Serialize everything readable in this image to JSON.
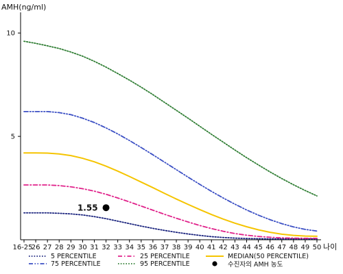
{
  "chart_data": {
    "type": "line",
    "ylabel": "AMH(ng/ml)",
    "xlabel": "나이",
    "categories": [
      "16-25",
      "26",
      "27",
      "28",
      "29",
      "30",
      "31",
      "32",
      "33",
      "34",
      "35",
      "36",
      "37",
      "38",
      "39",
      "40",
      "41",
      "42",
      "43",
      "44",
      "45",
      "46",
      "47",
      "48",
      "49",
      "50"
    ],
    "ylim": [
      0,
      11
    ],
    "yticks": [
      5,
      10
    ],
    "grid": false,
    "legend_position": "bottom",
    "series": [
      {
        "name": "5 PERCENTILE",
        "color": "#1a237e",
        "dash": "dot",
        "values": [
          1.3,
          1.3,
          1.3,
          1.28,
          1.25,
          1.2,
          1.12,
          1.02,
          0.9,
          0.78,
          0.66,
          0.55,
          0.45,
          0.36,
          0.28,
          0.21,
          0.15,
          0.11,
          0.08,
          0.06,
          0.05,
          0.04,
          0.04,
          0.04,
          0.04,
          0.04
        ]
      },
      {
        "name": "25 PERCENTILE",
        "color": "#e0218a",
        "dash": "dashdot",
        "values": [
          2.65,
          2.65,
          2.65,
          2.62,
          2.56,
          2.47,
          2.35,
          2.2,
          2.02,
          1.83,
          1.63,
          1.43,
          1.23,
          1.04,
          0.86,
          0.69,
          0.54,
          0.41,
          0.3,
          0.22,
          0.16,
          0.12,
          0.09,
          0.08,
          0.07,
          0.07
        ]
      },
      {
        "name": "MEDIAN(50 PERCENTILE)",
        "color": "#f5c400",
        "dash": "solid",
        "values": [
          4.2,
          4.2,
          4.19,
          4.15,
          4.07,
          3.94,
          3.77,
          3.56,
          3.32,
          3.06,
          2.79,
          2.52,
          2.24,
          1.97,
          1.71,
          1.46,
          1.22,
          1.0,
          0.8,
          0.63,
          0.48,
          0.36,
          0.27,
          0.21,
          0.18,
          0.17
        ]
      },
      {
        "name": "75 PERCENTILE",
        "color": "#3b4fc4",
        "dash": "dashdotdot",
        "values": [
          6.2,
          6.2,
          6.2,
          6.15,
          6.05,
          5.88,
          5.67,
          5.41,
          5.12,
          4.8,
          4.46,
          4.11,
          3.75,
          3.39,
          3.03,
          2.68,
          2.34,
          2.02,
          1.72,
          1.44,
          1.19,
          0.97,
          0.78,
          0.62,
          0.5,
          0.42
        ]
      },
      {
        "name": "95 PERCENTILE",
        "color": "#2e7d32",
        "dash": "dot",
        "values": [
          9.6,
          9.5,
          9.38,
          9.25,
          9.08,
          8.88,
          8.63,
          8.35,
          8.04,
          7.72,
          7.38,
          7.02,
          6.64,
          6.26,
          5.88,
          5.49,
          5.1,
          4.72,
          4.34,
          3.97,
          3.62,
          3.28,
          2.96,
          2.66,
          2.38,
          2.12
        ]
      }
    ],
    "points": [
      {
        "name": "수진자의 AMH 농도",
        "x": "32",
        "y": 1.55,
        "label": "1.55",
        "color": "#000000"
      }
    ]
  }
}
